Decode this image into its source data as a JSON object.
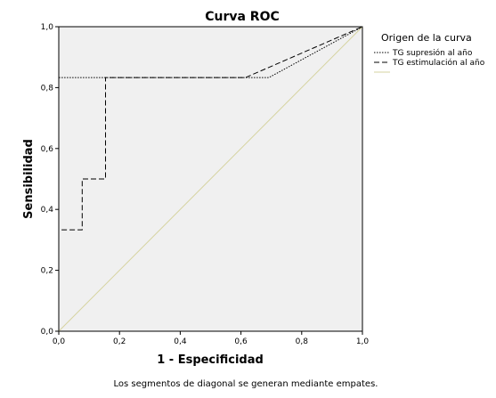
{
  "chart_data": {
    "type": "line",
    "title": "Curva ROC",
    "xlabel": "1 - Especificidad",
    "ylabel": "Sensibilidad",
    "xlim": [
      0,
      1
    ],
    "ylim": [
      0,
      1
    ],
    "x_ticks": [
      "0,0",
      "0,2",
      "0,4",
      "0,6",
      "0,8",
      "1,0"
    ],
    "y_ticks": [
      "0,0",
      "0,2",
      "0,4",
      "0,6",
      "0,8",
      "1,0"
    ],
    "grid": false,
    "legend": {
      "title": "Origen de la curva",
      "placement": "right",
      "entries": [
        "TG supresión al año",
        "TG estimulación al año",
        ""
      ]
    },
    "series": [
      {
        "name": "TG supresión al año",
        "style": "dotted",
        "points": [
          [
            0,
            0
          ],
          [
            0,
            0.833
          ],
          [
            0.692,
            0.833
          ],
          [
            1,
            1
          ]
        ]
      },
      {
        "name": "TG estimulación al año",
        "style": "dashed",
        "points": [
          [
            0,
            0
          ],
          [
            0,
            0.333
          ],
          [
            0.077,
            0.333
          ],
          [
            0.077,
            0.5
          ],
          [
            0.154,
            0.5
          ],
          [
            0.154,
            0.833
          ],
          [
            0.615,
            0.833
          ],
          [
            1,
            1
          ]
        ]
      },
      {
        "name": "",
        "style": "reference",
        "points": [
          [
            0,
            0
          ],
          [
            1,
            1
          ]
        ]
      }
    ],
    "footnote": "Los segmentos de diagonal se generan mediante empates."
  },
  "colors": {
    "plot_background": "#f0f0f0",
    "series_line": "#000000",
    "reference_line": "#d6d3a0"
  }
}
